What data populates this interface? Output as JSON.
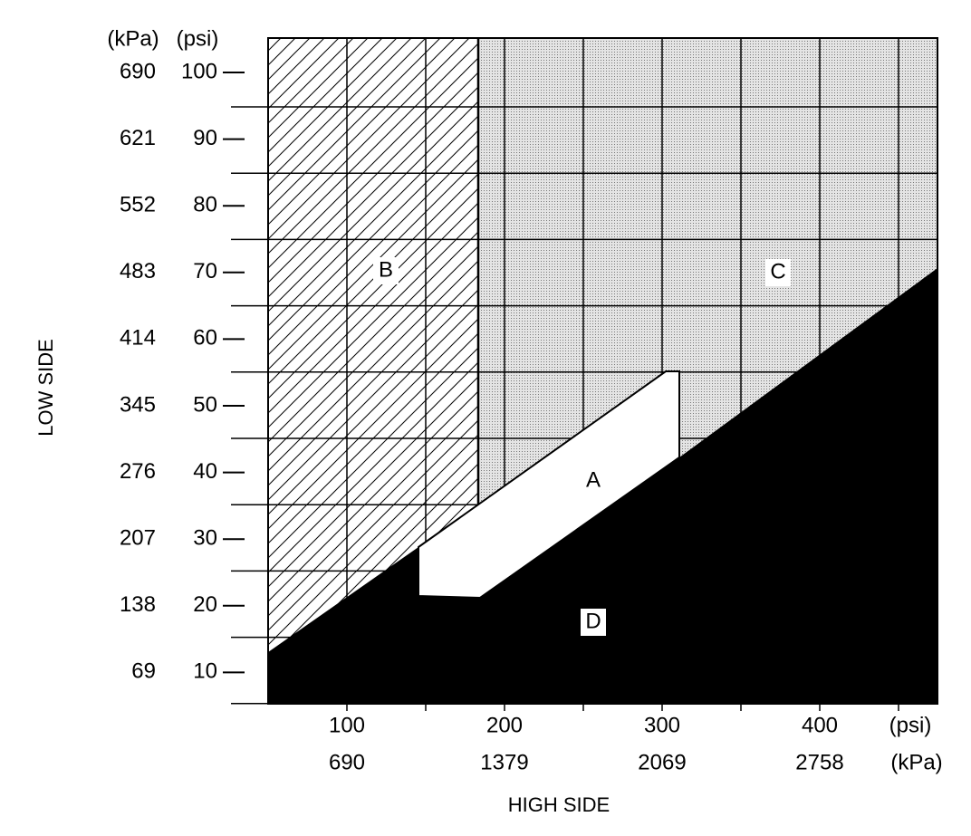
{
  "axes": {
    "y_unit_kpa": "(kPa)",
    "y_unit_psi": "(psi)",
    "y_label": "LOW SIDE",
    "x_label": "HIGH SIDE",
    "x_unit_psi": "(psi)",
    "x_unit_kpa": "(kPa)"
  },
  "y_ticks": [
    {
      "kpa": "690",
      "psi": "100"
    },
    {
      "kpa": "621",
      "psi": "90"
    },
    {
      "kpa": "552",
      "psi": "80"
    },
    {
      "kpa": "483",
      "psi": "70"
    },
    {
      "kpa": "414",
      "psi": "60"
    },
    {
      "kpa": "345",
      "psi": "50"
    },
    {
      "kpa": "276",
      "psi": "40"
    },
    {
      "kpa": "207",
      "psi": "30"
    },
    {
      "kpa": "138",
      "psi": "20"
    },
    {
      "kpa": "69",
      "psi": "10"
    }
  ],
  "x_ticks": [
    {
      "psi": "100",
      "kpa": "690"
    },
    {
      "psi": "200",
      "kpa": "1379"
    },
    {
      "psi": "300",
      "kpa": "2069"
    },
    {
      "psi": "400",
      "kpa": "2758"
    }
  ],
  "regions": {
    "a": "A",
    "b": "B",
    "c": "C",
    "d": "D"
  }
}
